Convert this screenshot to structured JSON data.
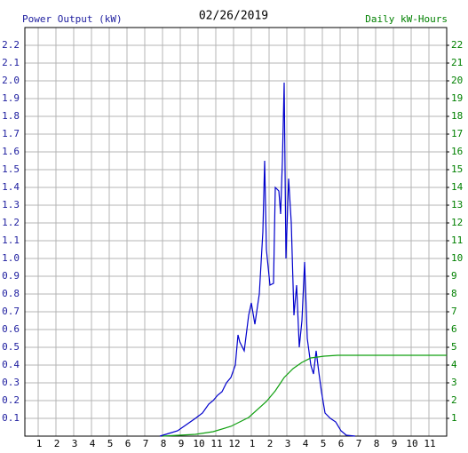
{
  "chart_data": {
    "type": "line",
    "title": "02/26/2019",
    "y_label": "Power Output (kW)",
    "y2_label": "Daily kW-Hours",
    "xlim": [
      0.25,
      24
    ],
    "xticks": [
      1,
      2,
      3,
      4,
      5,
      6,
      7,
      8,
      9,
      10,
      11,
      {
        "value": 12,
        "label": "12"
      },
      {
        "value": 13,
        "label": "1"
      },
      {
        "value": 14,
        "label": "2"
      },
      {
        "value": 15,
        "label": "3"
      },
      {
        "value": 16,
        "label": "4"
      },
      {
        "value": 17,
        "label": "5"
      },
      {
        "value": 18,
        "label": "6"
      },
      {
        "value": 19,
        "label": "7"
      },
      {
        "value": 20,
        "label": "8"
      },
      {
        "value": 21,
        "label": "9"
      },
      {
        "value": 22,
        "label": "10"
      },
      {
        "value": 23,
        "label": "11"
      }
    ],
    "ylim": [
      0,
      2.3
    ],
    "yticks": [
      0.1,
      0.2,
      0.3,
      0.4,
      0.5,
      0.6,
      0.7,
      0.8,
      0.9,
      {
        "value": 1,
        "label": "1.0"
      },
      1.1,
      1.2,
      1.3,
      1.4,
      1.5,
      1.6,
      1.7,
      1.8,
      1.9,
      {
        "value": 2,
        "label": "2.0"
      },
      2.1,
      2.2
    ],
    "y2lim": [
      0,
      23
    ],
    "y2ticks": [
      1,
      2,
      3,
      4,
      5,
      6,
      7,
      8,
      9,
      10,
      11,
      12,
      13,
      14,
      15,
      16,
      17,
      18,
      19,
      20,
      21,
      22
    ],
    "grid": true,
    "y_color": "#2020a0",
    "y2_color": "#008000",
    "series": [
      {
        "name": "Power Output (kW)",
        "color": "#0000cc",
        "axis": "y",
        "x": [
          7.85,
          8.35,
          8.85,
          9.35,
          9.85,
          10.25,
          10.6,
          10.85,
          11.1,
          11.35,
          11.6,
          11.85,
          12.1,
          12.25,
          12.35,
          12.6,
          12.85,
          13.0,
          13.2,
          13.45,
          13.65,
          13.75,
          13.85,
          14.05,
          14.25,
          14.35,
          14.55,
          14.65,
          14.75,
          14.85,
          14.95,
          15.1,
          15.25,
          15.4,
          15.55,
          15.7,
          15.85,
          16.0,
          16.15,
          16.35,
          16.5,
          16.65,
          16.8,
          16.95,
          17.15,
          17.45,
          17.75,
          18.05,
          18.35,
          18.85
        ],
        "values": [
          0,
          0.015,
          0.03,
          0.065,
          0.1,
          0.13,
          0.18,
          0.2,
          0.23,
          0.25,
          0.3,
          0.33,
          0.4,
          0.57,
          0.53,
          0.48,
          0.68,
          0.75,
          0.63,
          0.8,
          1.15,
          1.55,
          1.05,
          0.85,
          0.86,
          1.4,
          1.38,
          1.25,
          1.55,
          1.99,
          1.0,
          1.45,
          1.2,
          0.68,
          0.85,
          0.5,
          0.65,
          0.98,
          0.55,
          0.4,
          0.35,
          0.48,
          0.36,
          0.25,
          0.13,
          0.1,
          0.08,
          0.03,
          0.005,
          0
        ]
      },
      {
        "name": "Daily kW-Hours",
        "color": "#10a010",
        "axis": "y2",
        "x": [
          8.0,
          9.85,
          10.85,
          11.85,
          12.85,
          13.85,
          14.35,
          14.85,
          15.35,
          15.85,
          16.35,
          17.1,
          17.85,
          24
        ],
        "values": [
          0,
          0.1,
          0.25,
          0.55,
          1.05,
          1.95,
          2.55,
          3.3,
          3.8,
          4.15,
          4.4,
          4.5,
          4.55,
          4.55
        ]
      }
    ]
  }
}
